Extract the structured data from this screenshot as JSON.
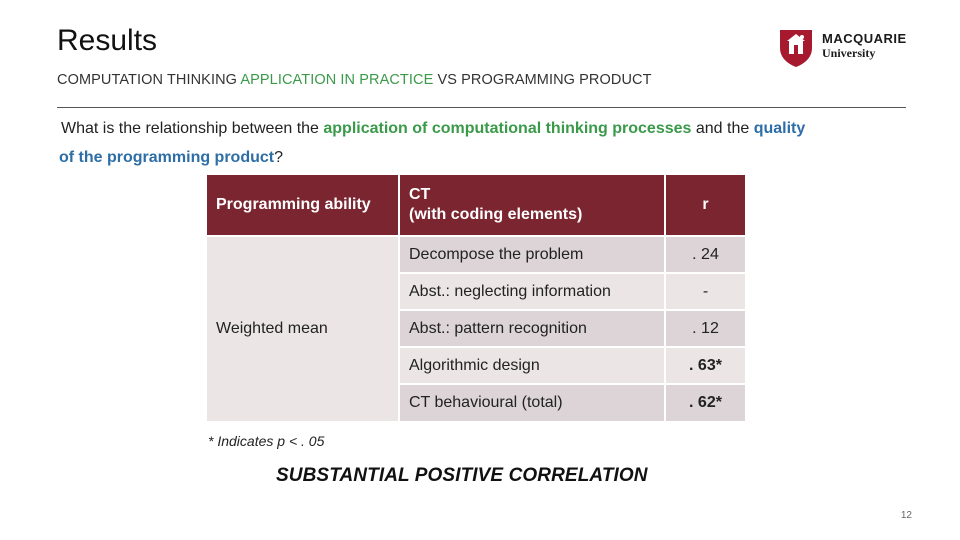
{
  "slide": {
    "title": "Results",
    "logo": {
      "name": "MACQUARIE",
      "sub": "University",
      "brand_color": "#a6192e"
    },
    "subtitle": {
      "part1": "COMPUTATION THINKING ",
      "part2": "APPLICATION IN PRACTICE",
      "part3": " VS ",
      "part4": "PROGRAMMING PRODUCT"
    },
    "question": {
      "part1": "What is the relationship between the ",
      "part2": "application of computational thinking processes",
      "part3": " and the ",
      "part4": "quality",
      "part5": "of the programming product",
      "part6": "?"
    },
    "table": {
      "headers": {
        "col1": "Programming ability",
        "col2_line1": "CT",
        "col2_line2": "(with coding elements)",
        "col3": "r"
      },
      "row_group_label": "Weighted mean",
      "rows": [
        {
          "ct": "Decompose the problem",
          "r": ". 24"
        },
        {
          "ct": "Abst.: neglecting information",
          "r": "-"
        },
        {
          "ct": "Abst.: pattern recognition",
          "r": ". 12"
        },
        {
          "ct": "Algorithmic design",
          "r": ". 63*"
        },
        {
          "ct": "CT behavioural (total)",
          "r": ". 62*"
        }
      ]
    },
    "footnote": "* Indicates p < . 05",
    "conclusion": "SUBSTANTIAL POSITIVE CORRELATION",
    "page_number": "12",
    "colors": {
      "header_bg": "#7a2530",
      "accent_green": "#3a9a4a",
      "accent_blue": "#2e6ea6",
      "row_light": "#ebe5e6",
      "row_dark": "#dcd4d6"
    }
  }
}
